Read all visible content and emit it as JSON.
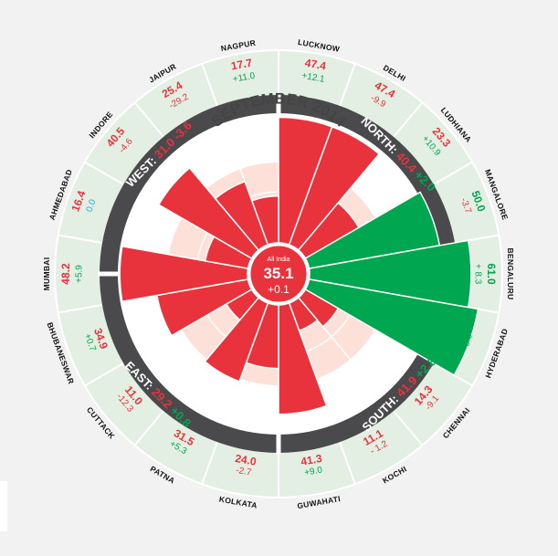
{
  "chart_data": {
    "type": "polar-bar",
    "title": "SEPTEMBER 2014",
    "all_india": {
      "label": "All India",
      "value": "35.1",
      "change": "+0.1"
    },
    "colors": {
      "red": "#e8333c",
      "green": "#00a650",
      "blue": "#2aa8e0",
      "ring": "#4a4a4c",
      "band": "#e3efe2",
      "inner_bg": "#fde0d8"
    },
    "regions": [
      {
        "name": "NORTH",
        "value": "40.4",
        "change": "+2.0",
        "value_color": "#e8333c",
        "change_color": "#00a650"
      },
      {
        "name": "SOUTH",
        "value": "41.9",
        "change": "+2.8",
        "value_color": "#e8333c",
        "change_color": "#00a650"
      },
      {
        "name": "EAST",
        "value": "29.2",
        "change": "+0.8",
        "value_color": "#e8333c",
        "change_color": "#00a650"
      },
      {
        "name": "WEST",
        "value": "31.0",
        "change": "-3.6",
        "value_color": "#e8333c",
        "change_color": "#e8333c"
      }
    ],
    "cities": [
      {
        "name": "LUCKNOW",
        "value": "47.4",
        "change": "+12.1",
        "value_color": "#e8333c",
        "change_color": "#00a650",
        "bar": 47.4
      },
      {
        "name": "DELHI",
        "value": "47.4",
        "change": "-9.9",
        "value_color": "#e8333c",
        "change_color": "#e8333c",
        "bar": 47.4
      },
      {
        "name": "LUDHIANA",
        "value": "23.3",
        "change": "+10.9",
        "value_color": "#e8333c",
        "change_color": "#00a650",
        "bar": 23.3
      },
      {
        "name": "MANGALORE",
        "value": "50.0",
        "change": "-3.7",
        "value_color": "#00a650",
        "change_color": "#e8333c",
        "bar": 50.0
      },
      {
        "name": "BENGALURU",
        "value": "61.0",
        "change": "+ 8.3",
        "value_color": "#00a650",
        "change_color": "#00a650",
        "bar": 61.0
      },
      {
        "name": "HYDERABAD",
        "value": "64.8",
        "change": "+3.0",
        "value_color": "#00a650",
        "change_color": "#00a650",
        "bar": 64.8
      },
      {
        "name": "CHENNAI",
        "value": "14.3",
        "change": "-9.1",
        "value_color": "#e8333c",
        "change_color": "#e8333c",
        "bar": 14.3
      },
      {
        "name": "KOCHI",
        "value": "11.1",
        "change": "- 1.2",
        "value_color": "#e8333c",
        "change_color": "#e8333c",
        "bar": 11.1
      },
      {
        "name": "GUWAHATI",
        "value": "41.3",
        "change": "+9.0",
        "value_color": "#e8333c",
        "change_color": "#00a650",
        "bar": 41.3
      },
      {
        "name": "KOLKATA",
        "value": "24.0",
        "change": "-2.7",
        "value_color": "#e8333c",
        "change_color": "#e8333c",
        "bar": 24.0
      },
      {
        "name": "PATNA",
        "value": "31.5",
        "change": "+5.3",
        "value_color": "#e8333c",
        "change_color": "#00a650",
        "bar": 31.5
      },
      {
        "name": "CUTTACK",
        "value": "11.0",
        "change": "-12.3",
        "value_color": "#e8333c",
        "change_color": "#e8333c",
        "bar": 11.0
      },
      {
        "name": "BHUBANESWAR",
        "value": "34.9",
        "change": "+0.7",
        "value_color": "#e8333c",
        "change_color": "#00a650",
        "bar": 34.9
      },
      {
        "name": "MUMBAI",
        "value": "48.2",
        "change": "+5.9",
        "value_color": "#e8333c",
        "change_color": "#00a650",
        "bar": 48.2
      },
      {
        "name": "AHMEDABAD",
        "value": "16.4",
        "change": "0.0",
        "value_color": "#e8333c",
        "change_color": "#2aa8e0",
        "bar": 16.4
      },
      {
        "name": "INDORE",
        "value": "40.5",
        "change": "-4.6",
        "value_color": "#e8333c",
        "change_color": "#e8333c",
        "bar": 40.5
      },
      {
        "name": "JAIPUR",
        "value": "25.4",
        "change": "-29.2",
        "value_color": "#e8333c",
        "change_color": "#e8333c",
        "bar": 25.4
      },
      {
        "name": "NAGPUR",
        "value": "17.7",
        "change": "+11.0",
        "value_color": "#e8333c",
        "change_color": "#00a650",
        "bar": 17.7
      }
    ]
  }
}
